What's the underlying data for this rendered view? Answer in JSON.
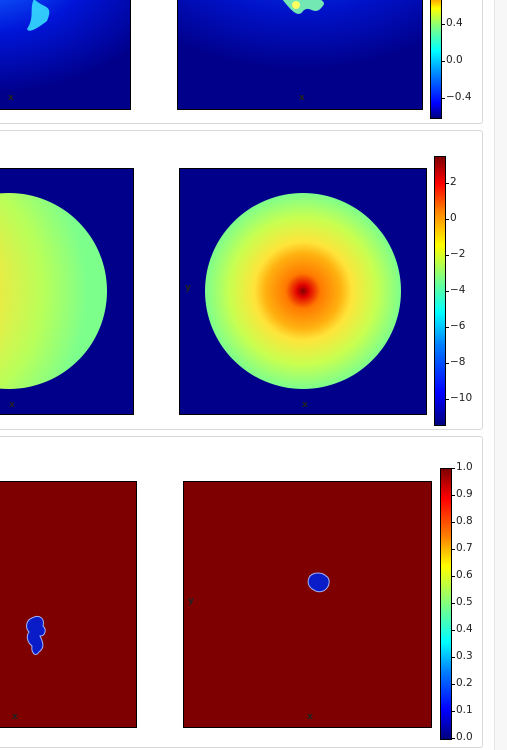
{
  "axis_labels": {
    "x": "x",
    "y": "y"
  },
  "row1": {
    "colorbar_ticks": [
      "0.4",
      "0.0",
      "−0.4"
    ]
  },
  "row2": {
    "colorbar_ticks": [
      "2",
      "0",
      "−2",
      "−4",
      "−6",
      "−8",
      "−10"
    ]
  },
  "row3": {
    "colorbar_ticks": [
      "1.0",
      "0.9",
      "0.8",
      "0.7",
      "0.6",
      "0.5",
      "0.4",
      "0.3",
      "0.2",
      "0.1",
      "0.0"
    ]
  },
  "colors": {
    "background_blue": "#00008b",
    "mask_red": "#7f0000",
    "mask_blue": "#0a1cc8"
  }
}
